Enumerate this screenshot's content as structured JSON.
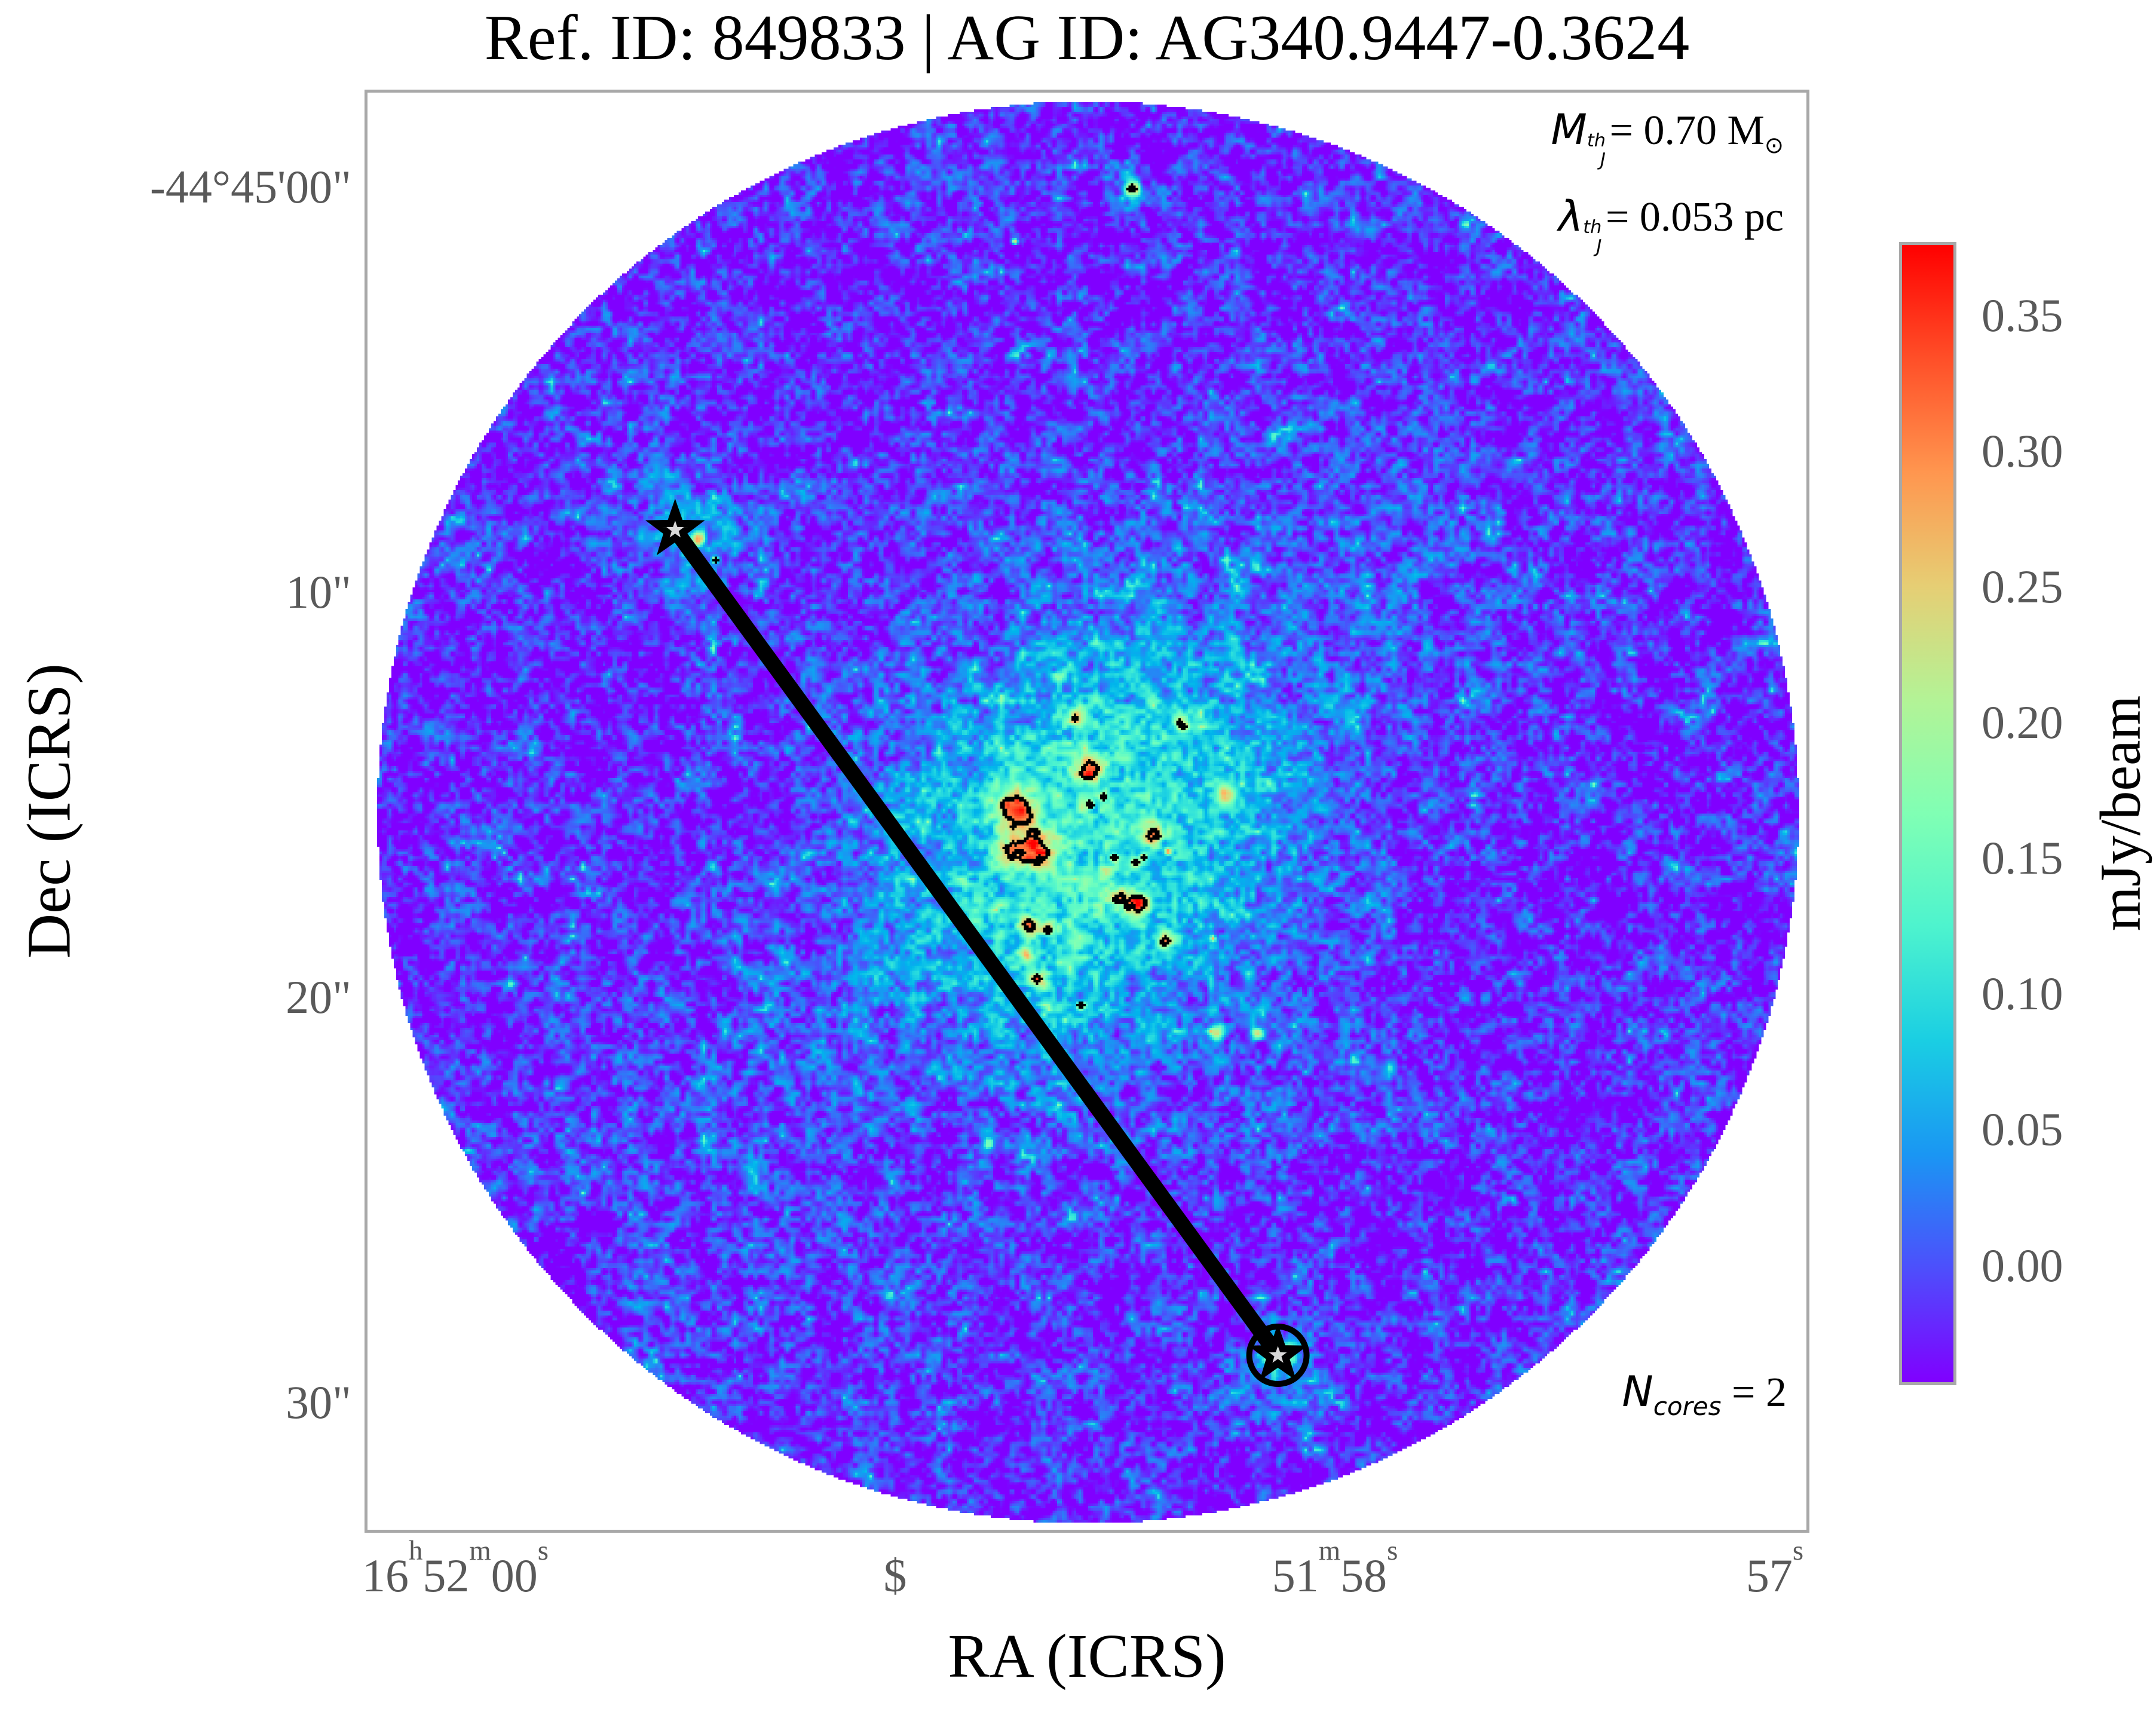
{
  "title": "Ref. ID: 849833 | AG ID: AG340.9447-0.3624",
  "annotations": {
    "jeans_mass": {
      "symbol": "M",
      "sup": "th",
      "sub": "J",
      "value": "= 0.70 M",
      "solar_sub": "⊙"
    },
    "jeans_length": {
      "symbol": "λ",
      "sup": "th",
      "sub": "J",
      "value": "= 0.053 pc"
    },
    "n_cores": {
      "symbol": "N",
      "sub": "cores",
      "value": " = 2"
    }
  },
  "xaxis": {
    "label": "RA (ICRS)",
    "ticks": [
      {
        "parts": [
          {
            "t": "16"
          },
          {
            "t": "h"
          },
          {
            "t": "52"
          },
          {
            "t": "m"
          },
          {
            "t": "00"
          },
          {
            "t": "s"
          }
        ]
      },
      {
        "parts": [
          {
            "t": "$"
          }
        ]
      },
      {
        "parts": [
          {
            "t": "51"
          },
          {
            "t": "m"
          },
          {
            "t": "58"
          },
          {
            "t": "s"
          }
        ]
      },
      {
        "parts": [
          {
            "t": "57"
          },
          {
            "t": "s"
          }
        ]
      }
    ]
  },
  "yaxis": {
    "label": "Dec (ICRS)",
    "ticks": [
      "-44°45'00\"",
      "10\"",
      "20\"",
      "30\""
    ]
  },
  "colorbar": {
    "label": "mJy/beam",
    "ticks": [
      "0.35",
      "0.30",
      "0.25",
      "0.20",
      "0.15",
      "0.10",
      "0.05",
      "0.00"
    ]
  },
  "chart_data": {
    "type": "heatmap",
    "title": "Ref. ID: 849833 | AG ID: AG340.9447-0.3624",
    "xlabel": "RA (ICRS)",
    "ylabel": "Dec (ICRS)",
    "x_tick_labels": [
      "16h52m00s",
      "$",
      "51m58s",
      "57s"
    ],
    "y_tick_labels": [
      "-44°45'00\"",
      "10\"",
      "20\"",
      "30\""
    ],
    "colorbar": {
      "label": "mJy/beam",
      "tick_values": [
        0.35,
        0.3,
        0.25,
        0.2,
        0.15,
        0.1,
        0.05,
        0.0
      ],
      "vmin": -0.044,
      "vmax": 0.377,
      "colormap": "rainbow"
    },
    "jeans_mass_Msun": 0.7,
    "jeans_length_pc": 0.053,
    "n_cores": 2,
    "field": {
      "shape": "circle",
      "radius_frac": 0.494,
      "units": "mJy/beam",
      "background_level": 0.0
    },
    "stars": [
      {
        "fx": 0.2138,
        "fy": 0.3043
      },
      {
        "fx": 0.6327,
        "fy": 0.8786
      }
    ],
    "separation_line": {
      "from_star": 0,
      "to_star": 1
    },
    "map": {
      "seed": 7,
      "base": 0.05,
      "contour_level": 0.78,
      "circle_radius_frac": 0.494,
      "broad": [
        [
          0.505,
          0.515,
          0.105,
          0.24
        ],
        [
          0.465,
          0.575,
          0.075,
          0.1
        ],
        [
          0.545,
          0.44,
          0.06,
          0.08
        ],
        [
          0.22,
          0.305,
          0.035,
          0.13
        ],
        [
          0.633,
          0.879,
          0.028,
          0.11
        ],
        [
          0.7,
          0.36,
          0.08,
          0.06
        ],
        [
          0.3,
          0.7,
          0.09,
          0.05
        ],
        [
          0.53,
          0.065,
          0.012,
          0.1
        ]
      ],
      "cores": [
        [
          0.4487,
          0.4969,
          0.011,
          0.62
        ],
        [
          0.4623,
          0.5259,
          0.0095,
          0.58
        ],
        [
          0.4433,
          0.5308,
          0.007,
          0.45
        ],
        [
          0.5,
          0.4704,
          0.0068,
          0.62
        ],
        [
          0.4917,
          0.4327,
          0.0045,
          0.56
        ],
        [
          0.5442,
          0.5151,
          0.005,
          0.58
        ],
        [
          0.5339,
          0.564,
          0.0062,
          0.6
        ],
        [
          0.5211,
          0.559,
          0.005,
          0.5
        ],
        [
          0.5529,
          0.59,
          0.0045,
          0.55
        ],
        [
          0.4582,
          0.5785,
          0.005,
          0.54
        ],
        [
          0.4723,
          0.5809,
          0.0035,
          0.48
        ],
        [
          0.4566,
          0.5979,
          0.0032,
          0.5
        ],
        [
          0.4645,
          0.6157,
          0.004,
          0.53
        ],
        [
          0.6327,
          0.8786,
          0.0062,
          0.74
        ],
        [
          0.2287,
          0.3093,
          0.0035,
          0.72
        ],
        [
          0.5306,
          0.0662,
          0.0035,
          0.72
        ],
        [
          0.5951,
          0.4874,
          0.0037,
          0.58
        ],
        [
          0.5662,
          0.4398,
          0.0035,
          0.56
        ],
        [
          0.5902,
          0.653,
          0.0037,
          0.55
        ],
        [
          0.6175,
          0.6546,
          0.003,
          0.52
        ],
        [
          0.2407,
          0.3242,
          0.0015,
          0.7
        ],
        [
          0.5178,
          0.5317,
          0.002,
          0.55
        ],
        [
          0.5331,
          0.535,
          0.002,
          0.55
        ],
        [
          0.5385,
          0.5308,
          0.0017,
          0.53
        ],
        [
          0.5103,
          0.489,
          0.002,
          0.56
        ],
        [
          0.5017,
          0.4948,
          0.0018,
          0.54
        ],
        [
          0.5554,
          0.5271,
          0.0018,
          0.53
        ],
        [
          0.5868,
          0.5876,
          0.0015,
          0.56
        ],
        [
          0.495,
          0.6344,
          0.0018,
          0.56
        ],
        [
          0.4495,
          0.1027,
          0.0015,
          0.68
        ]
      ]
    }
  }
}
